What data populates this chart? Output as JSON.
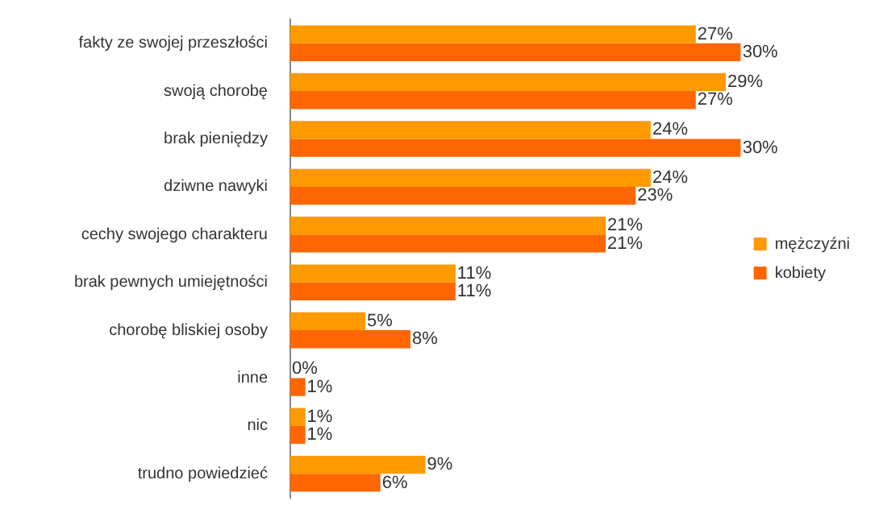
{
  "chart_data": {
    "type": "bar",
    "orientation": "horizontal",
    "categories": [
      "fakty ze swojej przeszłości",
      "swoją chorobę",
      "brak pieniędzy",
      "dziwne nawyki",
      "cechy swojego charakteru",
      "brak pewnych umiejętności",
      "chorobę bliskiej osoby",
      "inne",
      "nic",
      "trudno powiedzieć"
    ],
    "series": [
      {
        "name": "mężczyźni",
        "color": "#ff9900",
        "values": [
          27,
          29,
          24,
          24,
          21,
          11,
          5,
          0,
          1,
          9
        ],
        "value_labels": [
          "27%",
          "29%",
          "24%",
          "24%",
          "21%",
          "11%",
          "5%",
          "0%",
          "1%",
          "9%"
        ]
      },
      {
        "name": "kobiety",
        "color": "#ff6600",
        "values": [
          30,
          27,
          30,
          23,
          21,
          11,
          8,
          1,
          1,
          6
        ],
        "value_labels": [
          "30%",
          "27%",
          "30%",
          "23%",
          "21%",
          "11%",
          "8%",
          "1%",
          "1%",
          "6%"
        ]
      }
    ],
    "legend": "right"
  }
}
